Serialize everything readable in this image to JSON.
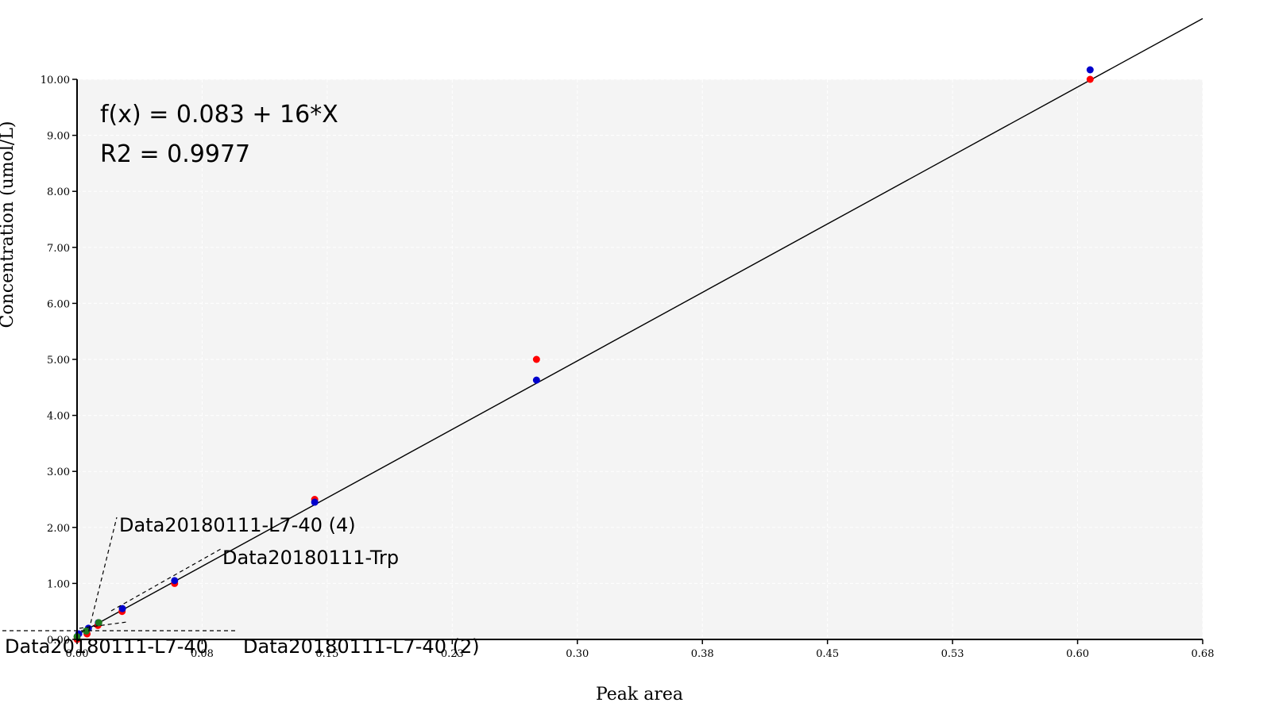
{
  "chart_data": {
    "type": "scatter",
    "xlabel": "Peak area",
    "ylabel": "Concentration (umol/L)",
    "xlim": [
      0,
      0.675
    ],
    "ylim": [
      0,
      10
    ],
    "x_ticks": [
      0.0,
      0.075,
      0.15,
      0.225,
      0.3,
      0.375,
      0.45,
      0.525,
      0.6,
      0.675
    ],
    "x_tick_labels": [
      "0.00",
      "0.08",
      "0.15",
      "0.23",
      "0.30",
      "0.38",
      "0.45",
      "0.53",
      "0.60",
      "0.68"
    ],
    "y_ticks": [
      0,
      1,
      2,
      3,
      4,
      5,
      6,
      7,
      8,
      9,
      10
    ],
    "y_tick_labels": [
      "0.00",
      "1.00",
      "2.00",
      "3.00",
      "4.00",
      "5.00",
      "6.00",
      "7.00",
      "8.00",
      "9.00",
      "10.00"
    ],
    "grid": true,
    "equation": "f(x) = 0.083 + 16*X",
    "r2": "R2 = 0.9977",
    "fit": {
      "intercept": 0.083,
      "slope": 16.3
    },
    "series": [
      {
        "color": "#ff0000",
        "x": [
          0.0,
          0.006,
          0.0125,
          0.027,
          0.0585,
          0.1425,
          0.2755,
          0.6075
        ],
        "y": [
          0.0,
          0.1,
          0.25,
          0.5,
          1.0,
          2.5,
          5.0,
          10.0
        ]
      },
      {
        "color": "#0000cc",
        "x": [
          0.001,
          0.0068,
          0.0128,
          0.0272,
          0.0585,
          0.1425,
          0.2755,
          0.6075
        ],
        "y": [
          0.1,
          0.2,
          0.3,
          0.55,
          1.05,
          2.45,
          4.63,
          10.17
        ]
      },
      {
        "color": "#1e7a1e",
        "x": [
          0.0,
          0.0055,
          0.013
        ],
        "y": [
          0.05,
          0.15,
          0.3
        ]
      }
    ],
    "annotations": [
      {
        "text": "Data20180111-L7-40 (4)",
        "x": 0.0035,
        "y": 0.1
      },
      {
        "text": "Data20180111-Trp",
        "x": 0.025,
        "y": 0.55
      },
      {
        "text": "Data20180111-L7-40",
        "x": 0.001,
        "y": 0.1
      },
      {
        "text": "Data20180111-L7-40 (2)",
        "x": 0.005,
        "y": 0.1
      }
    ]
  }
}
